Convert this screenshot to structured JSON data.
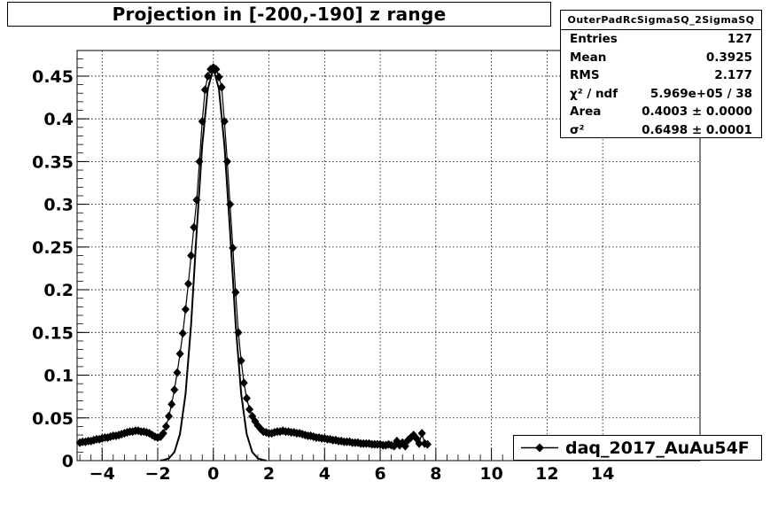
{
  "title": "Projection in [-200,-190] z range",
  "stats": {
    "name": "OuterPadRcSigmaSQ_2SigmaSQ",
    "rows": [
      {
        "label": "Entries",
        "value": "127"
      },
      {
        "label": "Mean",
        "value": "0.3925"
      },
      {
        "label": "RMS",
        "value": "2.177"
      },
      {
        "label": "χ² / ndf",
        "value": "5.969e+05 / 38"
      },
      {
        "label": "Area",
        "value": "0.4003 ± 0.0000"
      },
      {
        "label": "σ²",
        "value": "0.6498 ± 0.0001"
      }
    ]
  },
  "legend": {
    "label": "daq_2017_AuAu54F"
  },
  "chart_data": {
    "type": "scatter",
    "title": "Projection in [-200,-190] z range",
    "xlabel": "",
    "ylabel": "",
    "xlim": [
      -4.9,
      17.5
    ],
    "ylim": [
      0,
      0.48
    ],
    "grid": true,
    "legend_position": "bottom-right",
    "x_ticks": [
      "−4",
      "−2",
      "0",
      "2",
      "4",
      "6",
      "8",
      "10",
      "12",
      "14"
    ],
    "y_ticks": [
      "0",
      "0.05",
      "0.1",
      "0.15",
      "0.2",
      "0.25",
      "0.3",
      "0.35",
      "0.4",
      "0.45"
    ],
    "series": [
      {
        "name": "daq_2017_AuAu54F",
        "color": "#000000",
        "x": [
          -4.8,
          -4.7,
          -4.6,
          -4.5,
          -4.4,
          -4.3,
          -4.2,
          -4.1,
          -4.0,
          -3.9,
          -3.8,
          -3.7,
          -3.6,
          -3.5,
          -3.4,
          -3.3,
          -3.2,
          -3.1,
          -3.0,
          -2.9,
          -2.8,
          -2.7,
          -2.6,
          -2.5,
          -2.4,
          -2.3,
          -2.2,
          -2.1,
          -2.0,
          -1.9,
          -1.8,
          -1.7,
          -1.6,
          -1.5,
          -1.4,
          -1.3,
          -1.2,
          -1.1,
          -1.0,
          -0.9,
          -0.8,
          -0.7,
          -0.6,
          -0.5,
          -0.4,
          -0.3,
          -0.2,
          -0.1,
          0.0,
          0.1,
          0.2,
          0.3,
          0.4,
          0.5,
          0.6,
          0.7,
          0.8,
          0.9,
          1.0,
          1.1,
          1.2,
          1.3,
          1.4,
          1.5,
          1.6,
          1.7,
          1.8,
          1.9,
          2.0,
          2.1,
          2.2,
          2.3,
          2.4,
          2.5,
          2.6,
          2.7,
          2.8,
          2.9,
          3.0,
          3.1,
          3.2,
          3.3,
          3.4,
          3.5,
          3.6,
          3.7,
          3.8,
          3.9,
          4.0,
          4.1,
          4.2,
          4.3,
          4.4,
          4.5,
          4.6,
          4.7,
          4.8,
          4.9,
          5.0,
          5.1,
          5.2,
          5.3,
          5.4,
          5.5,
          5.6,
          5.7,
          5.8,
          5.9,
          6.0,
          6.1,
          6.2,
          6.3,
          6.4,
          6.5,
          6.6,
          6.7,
          6.8,
          6.9,
          7.0,
          7.1,
          7.2,
          7.3,
          7.4,
          7.5,
          7.6,
          7.7
        ],
        "y": [
          0.021,
          0.022,
          0.022,
          0.023,
          0.023,
          0.024,
          0.025,
          0.025,
          0.026,
          0.027,
          0.027,
          0.028,
          0.029,
          0.029,
          0.03,
          0.031,
          0.032,
          0.033,
          0.034,
          0.034,
          0.035,
          0.035,
          0.034,
          0.034,
          0.033,
          0.032,
          0.03,
          0.028,
          0.027,
          0.028,
          0.032,
          0.04,
          0.052,
          0.066,
          0.083,
          0.103,
          0.125,
          0.149,
          0.177,
          0.207,
          0.24,
          0.273,
          0.305,
          0.35,
          0.397,
          0.434,
          0.45,
          0.458,
          0.46,
          0.458,
          0.449,
          0.437,
          0.397,
          0.35,
          0.3,
          0.249,
          0.197,
          0.15,
          0.117,
          0.091,
          0.073,
          0.06,
          0.052,
          0.046,
          0.041,
          0.037,
          0.034,
          0.033,
          0.032,
          0.032,
          0.033,
          0.034,
          0.034,
          0.035,
          0.034,
          0.034,
          0.033,
          0.033,
          0.032,
          0.032,
          0.031,
          0.03,
          0.029,
          0.029,
          0.028,
          0.027,
          0.027,
          0.026,
          0.026,
          0.025,
          0.025,
          0.024,
          0.024,
          0.023,
          0.023,
          0.022,
          0.022,
          0.022,
          0.021,
          0.021,
          0.021,
          0.02,
          0.02,
          0.02,
          0.02,
          0.019,
          0.019,
          0.019,
          0.019,
          0.018,
          0.018,
          0.019,
          0.018,
          0.017,
          0.023,
          0.018,
          0.021,
          0.017,
          0.024,
          0.027,
          0.03,
          0.026,
          0.02,
          0.032,
          0.02,
          0.019
        ]
      },
      {
        "name": "fit",
        "color": "#000000",
        "x": [
          -1.9,
          -1.8,
          -1.6,
          -1.4,
          -1.2,
          -1.0,
          -0.8,
          -0.6,
          -0.4,
          -0.2,
          0.0,
          0.2,
          0.4,
          0.6,
          0.8,
          1.0,
          1.2,
          1.4,
          1.6,
          1.8,
          1.9
        ],
        "y": [
          0.0003,
          0.0006,
          0.0027,
          0.01,
          0.031,
          0.078,
          0.16,
          0.269,
          0.369,
          0.435,
          0.459,
          0.435,
          0.369,
          0.269,
          0.16,
          0.078,
          0.031,
          0.01,
          0.0027,
          0.0006,
          0.0003
        ]
      }
    ]
  }
}
